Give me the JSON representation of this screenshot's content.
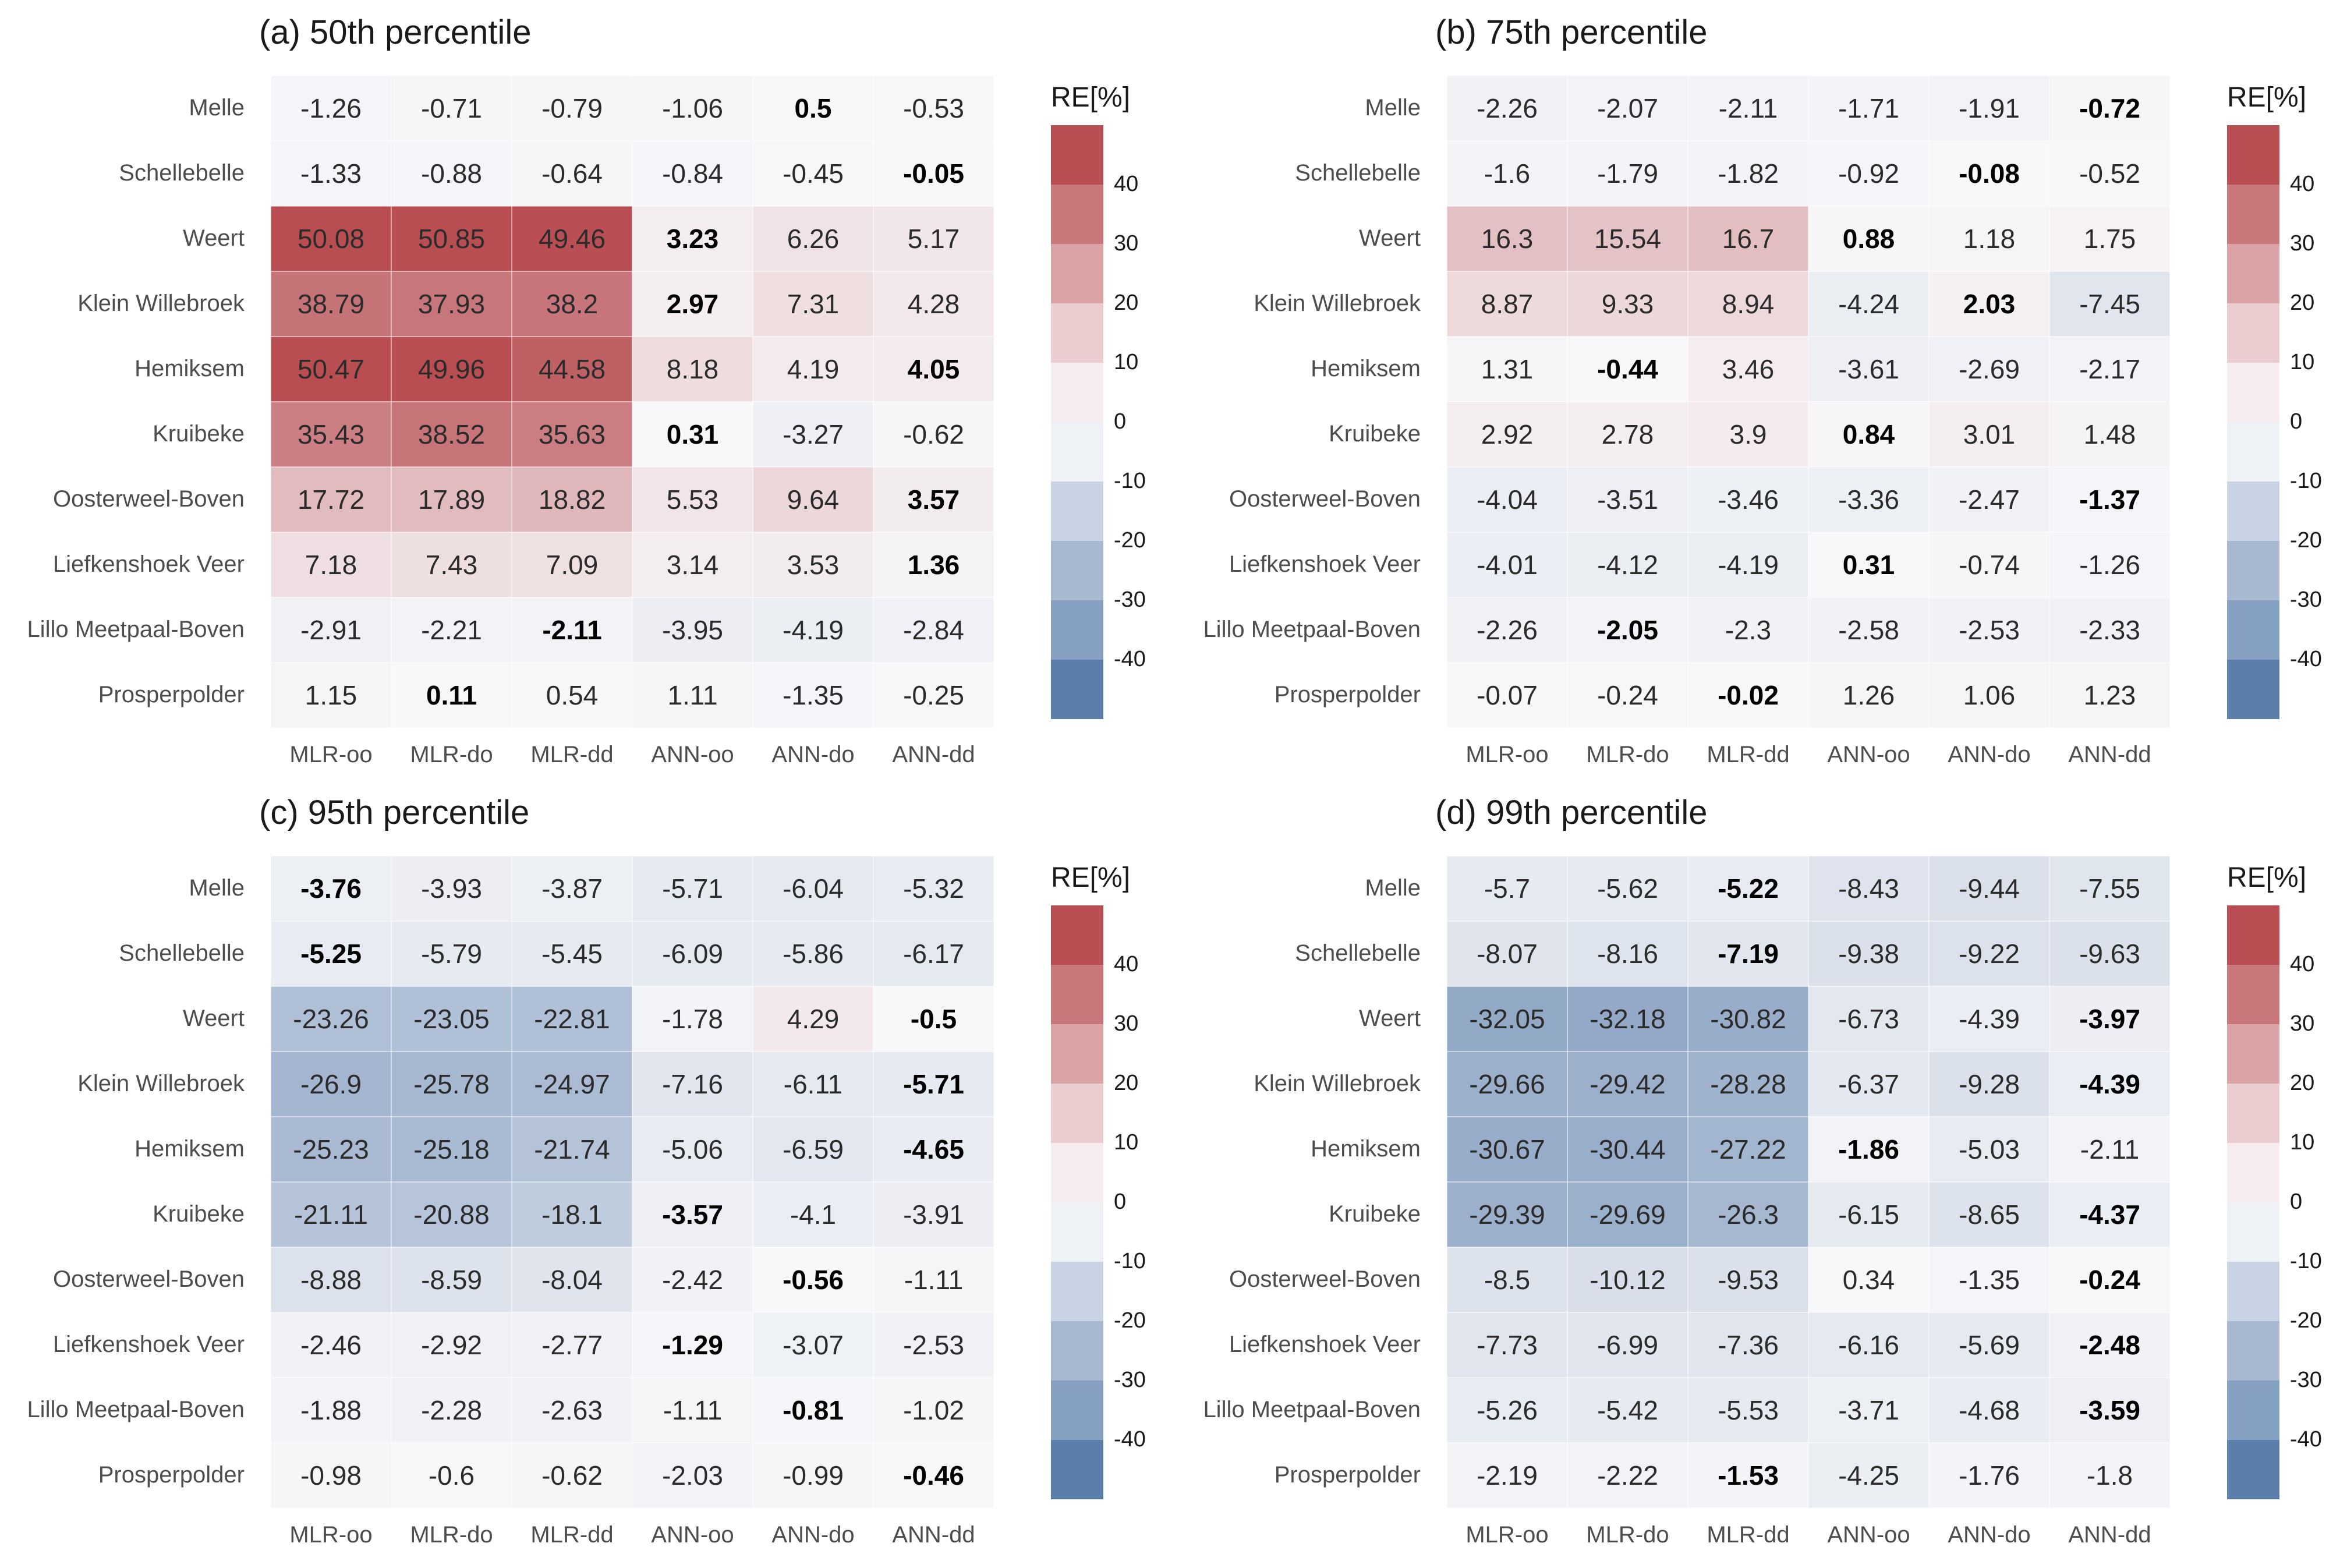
{
  "chart_data": [
    {
      "type": "heatmap",
      "title": "(a) 50th percentile",
      "rows": [
        "Melle",
        "Schellebelle",
        "Weert",
        "Klein Willebroek",
        "Hemiksem",
        "Kruibeke",
        "Oosterweel-Boven",
        "Liefkenshoek Veer",
        "Lillo Meetpaal-Boven",
        "Prosperpolder"
      ],
      "columns": [
        "MLR-oo",
        "MLR-do",
        "MLR-dd",
        "ANN-oo",
        "ANN-do",
        "ANN-dd"
      ],
      "values": [
        [
          "-1.26",
          "-0.71",
          "-0.79",
          "-1.06",
          "0.5",
          "-0.53"
        ],
        [
          "-1.33",
          "-0.88",
          "-0.64",
          "-0.84",
          "-0.45",
          "-0.05"
        ],
        [
          "50.08",
          "50.85",
          "49.46",
          "3.23",
          "6.26",
          "5.17"
        ],
        [
          "38.79",
          "37.93",
          "38.2",
          "2.97",
          "7.31",
          "4.28"
        ],
        [
          "50.47",
          "49.96",
          "44.58",
          "8.18",
          "4.19",
          "4.05"
        ],
        [
          "35.43",
          "38.52",
          "35.63",
          "0.31",
          "-3.27",
          "-0.62"
        ],
        [
          "17.72",
          "17.89",
          "18.82",
          "5.53",
          "9.64",
          "3.57"
        ],
        [
          "7.18",
          "7.43",
          "7.09",
          "3.14",
          "3.53",
          "1.36"
        ],
        [
          "-2.91",
          "-2.21",
          "-2.11",
          "-3.95",
          "-4.19",
          "-2.84"
        ],
        [
          "1.15",
          "0.11",
          "0.54",
          "1.11",
          "-1.35",
          "-0.25"
        ]
      ],
      "bold": [
        [
          false,
          false,
          false,
          false,
          true,
          false
        ],
        [
          false,
          false,
          false,
          false,
          false,
          true
        ],
        [
          false,
          false,
          false,
          true,
          false,
          false
        ],
        [
          false,
          false,
          false,
          true,
          false,
          false
        ],
        [
          false,
          false,
          false,
          false,
          false,
          true
        ],
        [
          false,
          false,
          false,
          true,
          false,
          false
        ],
        [
          false,
          false,
          false,
          false,
          false,
          true
        ],
        [
          false,
          false,
          false,
          false,
          false,
          true
        ],
        [
          false,
          false,
          true,
          false,
          false,
          false
        ],
        [
          false,
          true,
          false,
          false,
          false,
          false
        ]
      ]
    },
    {
      "type": "heatmap",
      "title": "(b) 75th percentile",
      "rows": [
        "Melle",
        "Schellebelle",
        "Weert",
        "Klein Willebroek",
        "Hemiksem",
        "Kruibeke",
        "Oosterweel-Boven",
        "Liefkenshoek Veer",
        "Lillo Meetpaal-Boven",
        "Prosperpolder"
      ],
      "columns": [
        "MLR-oo",
        "MLR-do",
        "MLR-dd",
        "ANN-oo",
        "ANN-do",
        "ANN-dd"
      ],
      "values": [
        [
          "-2.26",
          "-2.07",
          "-2.11",
          "-1.71",
          "-1.91",
          "-0.72"
        ],
        [
          "-1.6",
          "-1.79",
          "-1.82",
          "-0.92",
          "-0.08",
          "-0.52"
        ],
        [
          "16.3",
          "15.54",
          "16.7",
          "0.88",
          "1.18",
          "1.75"
        ],
        [
          "8.87",
          "9.33",
          "8.94",
          "-4.24",
          "2.03",
          "-7.45"
        ],
        [
          "1.31",
          "-0.44",
          "3.46",
          "-3.61",
          "-2.69",
          "-2.17"
        ],
        [
          "2.92",
          "2.78",
          "3.9",
          "0.84",
          "3.01",
          "1.48"
        ],
        [
          "-4.04",
          "-3.51",
          "-3.46",
          "-3.36",
          "-2.47",
          "-1.37"
        ],
        [
          "-4.01",
          "-4.12",
          "-4.19",
          "0.31",
          "-0.74",
          "-1.26"
        ],
        [
          "-2.26",
          "-2.05",
          "-2.3",
          "-2.58",
          "-2.53",
          "-2.33"
        ],
        [
          "-0.07",
          "-0.24",
          "-0.02",
          "1.26",
          "1.06",
          "1.23"
        ]
      ],
      "bold": [
        [
          false,
          false,
          false,
          false,
          false,
          true
        ],
        [
          false,
          false,
          false,
          false,
          true,
          false
        ],
        [
          false,
          false,
          false,
          true,
          false,
          false
        ],
        [
          false,
          false,
          false,
          false,
          true,
          false
        ],
        [
          false,
          true,
          false,
          false,
          false,
          false
        ],
        [
          false,
          false,
          false,
          true,
          false,
          false
        ],
        [
          false,
          false,
          false,
          false,
          false,
          true
        ],
        [
          false,
          false,
          false,
          true,
          false,
          false
        ],
        [
          false,
          true,
          false,
          false,
          false,
          false
        ],
        [
          false,
          false,
          true,
          false,
          false,
          false
        ]
      ]
    },
    {
      "type": "heatmap",
      "title": "(c) 95th percentile",
      "rows": [
        "Melle",
        "Schellebelle",
        "Weert",
        "Klein Willebroek",
        "Hemiksem",
        "Kruibeke",
        "Oosterweel-Boven",
        "Liefkenshoek Veer",
        "Lillo Meetpaal-Boven",
        "Prosperpolder"
      ],
      "columns": [
        "MLR-oo",
        "MLR-do",
        "MLR-dd",
        "ANN-oo",
        "ANN-do",
        "ANN-dd"
      ],
      "values": [
        [
          "-3.76",
          "-3.93",
          "-3.87",
          "-5.71",
          "-6.04",
          "-5.32"
        ],
        [
          "-5.25",
          "-5.79",
          "-5.45",
          "-6.09",
          "-5.86",
          "-6.17"
        ],
        [
          "-23.26",
          "-23.05",
          "-22.81",
          "-1.78",
          "4.29",
          "-0.5"
        ],
        [
          "-26.9",
          "-25.78",
          "-24.97",
          "-7.16",
          "-6.11",
          "-5.71"
        ],
        [
          "-25.23",
          "-25.18",
          "-21.74",
          "-5.06",
          "-6.59",
          "-4.65"
        ],
        [
          "-21.11",
          "-20.88",
          "-18.1",
          "-3.57",
          "-4.1",
          "-3.91"
        ],
        [
          "-8.88",
          "-8.59",
          "-8.04",
          "-2.42",
          "-0.56",
          "-1.11"
        ],
        [
          "-2.46",
          "-2.92",
          "-2.77",
          "-1.29",
          "-3.07",
          "-2.53"
        ],
        [
          "-1.88",
          "-2.28",
          "-2.63",
          "-1.11",
          "-0.81",
          "-1.02"
        ],
        [
          "-0.98",
          "-0.6",
          "-0.62",
          "-2.03",
          "-0.99",
          "-0.46"
        ]
      ],
      "bold": [
        [
          true,
          false,
          false,
          false,
          false,
          false
        ],
        [
          true,
          false,
          false,
          false,
          false,
          false
        ],
        [
          false,
          false,
          false,
          false,
          false,
          true
        ],
        [
          false,
          false,
          false,
          false,
          false,
          true
        ],
        [
          false,
          false,
          false,
          false,
          false,
          true
        ],
        [
          false,
          false,
          false,
          true,
          false,
          false
        ],
        [
          false,
          false,
          false,
          false,
          true,
          false
        ],
        [
          false,
          false,
          false,
          true,
          false,
          false
        ],
        [
          false,
          false,
          false,
          false,
          true,
          false
        ],
        [
          false,
          false,
          false,
          false,
          false,
          true
        ]
      ]
    },
    {
      "type": "heatmap",
      "title": "(d) 99th percentile",
      "rows": [
        "Melle",
        "Schellebelle",
        "Weert",
        "Klein Willebroek",
        "Hemiksem",
        "Kruibeke",
        "Oosterweel-Boven",
        "Liefkenshoek Veer",
        "Lillo Meetpaal-Boven",
        "Prosperpolder"
      ],
      "columns": [
        "MLR-oo",
        "MLR-do",
        "MLR-dd",
        "ANN-oo",
        "ANN-do",
        "ANN-dd"
      ],
      "values": [
        [
          "-5.7",
          "-5.62",
          "-5.22",
          "-8.43",
          "-9.44",
          "-7.55"
        ],
        [
          "-8.07",
          "-8.16",
          "-7.19",
          "-9.38",
          "-9.22",
          "-9.63"
        ],
        [
          "-32.05",
          "-32.18",
          "-30.82",
          "-6.73",
          "-4.39",
          "-3.97"
        ],
        [
          "-29.66",
          "-29.42",
          "-28.28",
          "-6.37",
          "-9.28",
          "-4.39"
        ],
        [
          "-30.67",
          "-30.44",
          "-27.22",
          "-1.86",
          "-5.03",
          "-2.11"
        ],
        [
          "-29.39",
          "-29.69",
          "-26.3",
          "-6.15",
          "-8.65",
          "-4.37"
        ],
        [
          "-8.5",
          "-10.12",
          "-9.53",
          "0.34",
          "-1.35",
          "-0.24"
        ],
        [
          "-7.73",
          "-6.99",
          "-7.36",
          "-6.16",
          "-5.69",
          "-2.48"
        ],
        [
          "-5.26",
          "-5.42",
          "-5.53",
          "-3.71",
          "-4.68",
          "-3.59"
        ],
        [
          "-2.19",
          "-2.22",
          "-1.53",
          "-4.25",
          "-1.76",
          "-1.8"
        ]
      ],
      "bold": [
        [
          false,
          false,
          true,
          false,
          false,
          false
        ],
        [
          false,
          false,
          true,
          false,
          false,
          false
        ],
        [
          false,
          false,
          false,
          false,
          false,
          true
        ],
        [
          false,
          false,
          false,
          false,
          false,
          true
        ],
        [
          false,
          false,
          false,
          true,
          false,
          false
        ],
        [
          false,
          false,
          false,
          false,
          false,
          true
        ],
        [
          false,
          false,
          false,
          false,
          false,
          true
        ],
        [
          false,
          false,
          false,
          false,
          false,
          true
        ],
        [
          false,
          false,
          false,
          false,
          false,
          true
        ],
        [
          false,
          false,
          true,
          false,
          false,
          false
        ]
      ]
    }
  ],
  "legend": {
    "title": "RE[%]",
    "ticks": [
      "40",
      "30",
      "20",
      "10",
      "0",
      "-10",
      "-20",
      "-30",
      "-40"
    ],
    "bins": [
      50,
      40,
      30,
      20,
      10,
      0,
      -10,
      -20,
      -30,
      -40,
      -50
    ],
    "colors": [
      "#b84d52",
      "#c9777b",
      "#daa3a6",
      "#ebcdd0",
      "#f7ecee",
      "#eef1f6",
      "#c8d4e3",
      "#a7b8d0",
      "#86a0c1",
      "#5b7eab"
    ]
  },
  "colors": {
    "high": "#b84d52",
    "neutral": "#f8f8fa",
    "low": "#5b7eab"
  }
}
